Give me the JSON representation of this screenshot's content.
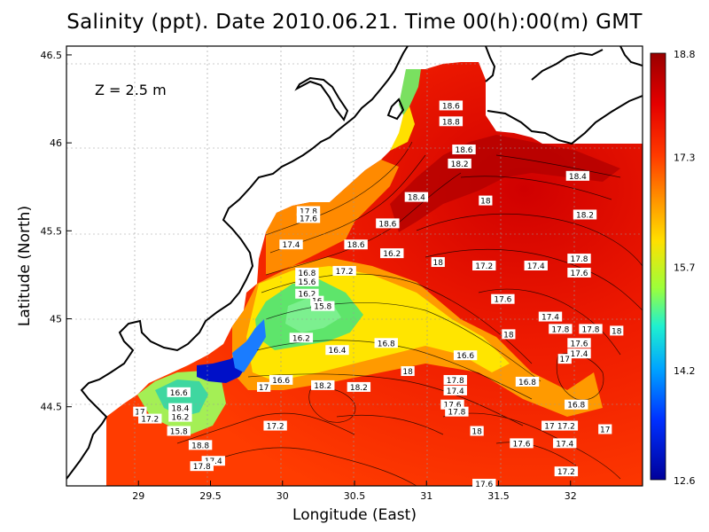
{
  "title": "Salinity (ppt). Date 2010.06.21. Time 00(h):00(m) GMT",
  "depth_label": "Z = 2.5 m",
  "chart_data": {
    "type": "heatmap",
    "title": "Salinity (ppt). Date 2010.06.21. Time 00(h):00(m) GMT",
    "xlabel": "Longitude (East)",
    "ylabel": "Latitude (North)",
    "xlim": [
      28.5,
      32.5
    ],
    "ylim": [
      44.05,
      46.55
    ],
    "x_ticks": [
      "29",
      "29.5",
      "30",
      "30.5",
      "31",
      "31.5",
      "32"
    ],
    "x_tick_values": [
      29,
      29.5,
      30,
      30.5,
      31,
      31.5,
      32
    ],
    "y_ticks": [
      "44.5",
      "45",
      "45.5",
      "46",
      "46.5"
    ],
    "y_tick_values": [
      44.5,
      45,
      45.5,
      46,
      46.5
    ],
    "grid": true,
    "colorbar": {
      "min": 12.6,
      "max": 18.8,
      "ticks": [
        "18.8",
        "17.3",
        "15.7",
        "14.2",
        "12.6"
      ],
      "tick_values": [
        18.8,
        17.3,
        15.7,
        14.2,
        12.6
      ]
    },
    "contour_labels": [
      {
        "text": "18.6",
        "lon": 31.17,
        "lat": 46.21
      },
      {
        "text": "18.8",
        "lon": 31.17,
        "lat": 46.12
      },
      {
        "text": "18.6",
        "lon": 31.26,
        "lat": 45.96
      },
      {
        "text": "18.2",
        "lon": 31.23,
        "lat": 45.88
      },
      {
        "text": "18.4",
        "lon": 32.05,
        "lat": 45.81
      },
      {
        "text": "18.4",
        "lon": 30.93,
        "lat": 45.69
      },
      {
        "text": "18",
        "lon": 31.41,
        "lat": 45.67
      },
      {
        "text": "18.2",
        "lon": 32.1,
        "lat": 45.59
      },
      {
        "text": "17.8",
        "lon": 30.18,
        "lat": 45.61
      },
      {
        "text": "17.6",
        "lon": 30.18,
        "lat": 45.57
      },
      {
        "text": "18.6",
        "lon": 30.73,
        "lat": 45.54
      },
      {
        "text": "17.4",
        "lon": 30.06,
        "lat": 45.42
      },
      {
        "text": "18.6",
        "lon": 30.51,
        "lat": 45.42
      },
      {
        "text": "16.2",
        "lon": 30.76,
        "lat": 45.37
      },
      {
        "text": "18",
        "lon": 31.08,
        "lat": 45.32
      },
      {
        "text": "17.2",
        "lon": 31.4,
        "lat": 45.3
      },
      {
        "text": "17.4",
        "lon": 31.76,
        "lat": 45.3
      },
      {
        "text": "17.8",
        "lon": 32.06,
        "lat": 45.34
      },
      {
        "text": "17.6",
        "lon": 32.06,
        "lat": 45.26
      },
      {
        "text": "16.8",
        "lon": 30.17,
        "lat": 45.26
      },
      {
        "text": "15.6",
        "lon": 30.17,
        "lat": 45.21
      },
      {
        "text": "17.2",
        "lon": 30.43,
        "lat": 45.27
      },
      {
        "text": "16.2",
        "lon": 30.17,
        "lat": 45.14
      },
      {
        "text": "16",
        "lon": 30.24,
        "lat": 45.1
      },
      {
        "text": "15.8",
        "lon": 30.28,
        "lat": 45.07
      },
      {
        "text": "17.6",
        "lon": 31.53,
        "lat": 45.11
      },
      {
        "text": "17.4",
        "lon": 31.86,
        "lat": 45.01
      },
      {
        "text": "17.8",
        "lon": 31.93,
        "lat": 44.94
      },
      {
        "text": "17.8",
        "lon": 32.14,
        "lat": 44.94
      },
      {
        "text": "16.2",
        "lon": 30.13,
        "lat": 44.89
      },
      {
        "text": "16.4",
        "lon": 30.38,
        "lat": 44.82
      },
      {
        "text": "16.8",
        "lon": 30.72,
        "lat": 44.86
      },
      {
        "text": "16.6",
        "lon": 31.27,
        "lat": 44.79
      },
      {
        "text": "17.6",
        "lon": 32.06,
        "lat": 44.86
      },
      {
        "text": "17.4",
        "lon": 32.06,
        "lat": 44.8
      },
      {
        "text": "17",
        "lon": 31.96,
        "lat": 44.77
      },
      {
        "text": "18",
        "lon": 31.57,
        "lat": 44.91
      },
      {
        "text": "18",
        "lon": 32.32,
        "lat": 44.93
      },
      {
        "text": "18",
        "lon": 30.87,
        "lat": 44.7
      },
      {
        "text": "16.6",
        "lon": 29.99,
        "lat": 44.65
      },
      {
        "text": "17",
        "lon": 29.87,
        "lat": 44.61
      },
      {
        "text": "18.2",
        "lon": 30.28,
        "lat": 44.62
      },
      {
        "text": "18.2",
        "lon": 30.53,
        "lat": 44.61
      },
      {
        "text": "17.8",
        "lon": 31.2,
        "lat": 44.65
      },
      {
        "text": "17.4",
        "lon": 31.2,
        "lat": 44.59
      },
      {
        "text": "16.8",
        "lon": 31.7,
        "lat": 44.64
      },
      {
        "text": "16.6",
        "lon": 29.28,
        "lat": 44.58
      },
      {
        "text": "17.6",
        "lon": 31.18,
        "lat": 44.51
      },
      {
        "text": "17.8",
        "lon": 31.21,
        "lat": 44.47
      },
      {
        "text": "16.8",
        "lon": 32.04,
        "lat": 44.51
      },
      {
        "text": "17",
        "lon": 29.01,
        "lat": 44.47
      },
      {
        "text": "17.2",
        "lon": 29.08,
        "lat": 44.43
      },
      {
        "text": "18.4",
        "lon": 29.29,
        "lat": 44.49
      },
      {
        "text": "16.2",
        "lon": 29.29,
        "lat": 44.44
      },
      {
        "text": "15.8",
        "lon": 29.28,
        "lat": 44.36
      },
      {
        "text": "17.2",
        "lon": 29.95,
        "lat": 44.39
      },
      {
        "text": "18",
        "lon": 31.35,
        "lat": 44.36
      },
      {
        "text": "17.8",
        "lon": 31.88,
        "lat": 44.39
      },
      {
        "text": "17.2",
        "lon": 31.97,
        "lat": 44.39
      },
      {
        "text": "17",
        "lon": 32.24,
        "lat": 44.37
      },
      {
        "text": "18.8",
        "lon": 29.43,
        "lat": 44.28
      },
      {
        "text": "17.6",
        "lon": 31.66,
        "lat": 44.29
      },
      {
        "text": "17.4",
        "lon": 31.96,
        "lat": 44.29
      },
      {
        "text": "17.4",
        "lon": 29.52,
        "lat": 44.19
      },
      {
        "text": "17.8",
        "lon": 29.44,
        "lat": 44.16
      },
      {
        "text": "17.2",
        "lon": 31.97,
        "lat": 44.13
      },
      {
        "text": "17.6",
        "lon": 31.4,
        "lat": 44.06
      }
    ]
  }
}
